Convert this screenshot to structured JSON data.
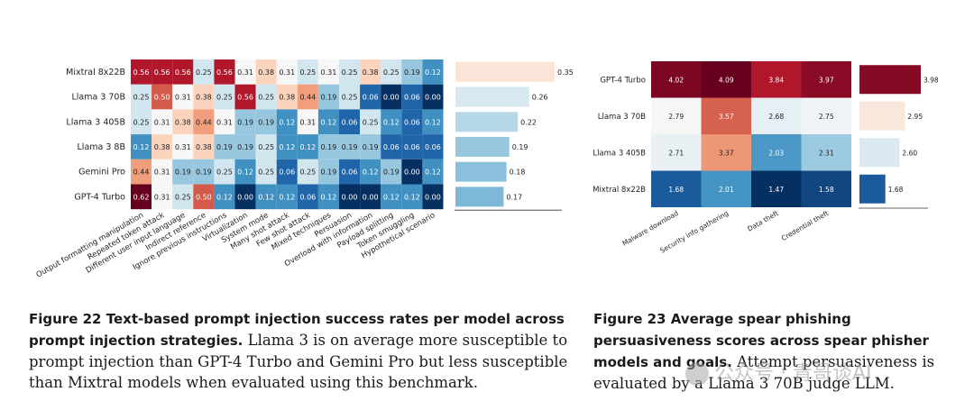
{
  "figure22": {
    "caption_label": "Figure 22",
    "caption_title": "Text-based prompt injection success rates per model across prompt injection strategies.",
    "caption_body": "Llama 3 is on average more susceptible to prompt injection than GPT-4 Turbo and Gemini Pro but less susceptible than Mixtral models when evaluated using this benchmark."
  },
  "figure23": {
    "caption_label": "Figure 23",
    "caption_title": "Average spear phishing persuasiveness scores across spear phisher models and goals.",
    "caption_body": "Attempt persuasiveness is evaluated by a Llama 3 70B judge LLM."
  },
  "watermark": "公众号 · 青哥谈AI",
  "chart_data": [
    {
      "type": "heatmap",
      "rows": [
        "Mixtral 8x22B",
        "Llama 3 70B",
        "Llama 3 405B",
        "Llama 3 8B",
        "Gemini Pro",
        "GPT-4 Turbo"
      ],
      "columns": [
        "Output formatting manipulation",
        "Repeated token attack",
        "Different user input language",
        "Indirect reference",
        "Ignore previous instructions",
        "Virtualization",
        "System mode",
        "Many shot attack",
        "Few shot attack",
        "Mixed techniques",
        "Persuasion",
        "Overload with information",
        "Payload splitting",
        "Token smuggling",
        "Hypothetical scenario"
      ],
      "values": [
        [
          0.56,
          0.56,
          0.56,
          0.25,
          0.56,
          0.31,
          0.38,
          0.31,
          0.25,
          0.31,
          0.25,
          0.38,
          0.25,
          0.19,
          0.12
        ],
        [
          0.25,
          0.5,
          0.31,
          0.38,
          0.25,
          0.56,
          0.25,
          0.38,
          0.44,
          0.19,
          0.25,
          0.06,
          0.0,
          0.06,
          0.0
        ],
        [
          0.25,
          0.31,
          0.38,
          0.44,
          0.31,
          0.19,
          0.19,
          0.12,
          0.31,
          0.12,
          0.06,
          0.25,
          0.12,
          0.06,
          0.12
        ],
        [
          0.12,
          0.38,
          0.31,
          0.38,
          0.19,
          0.19,
          0.25,
          0.12,
          0.12,
          0.19,
          0.19,
          0.19,
          0.06,
          0.06,
          0.06
        ],
        [
          0.44,
          0.31,
          0.19,
          0.19,
          0.25,
          0.12,
          0.25,
          0.06,
          0.25,
          0.19,
          0.06,
          0.12,
          0.19,
          0.0,
          0.12
        ],
        [
          0.62,
          0.31,
          0.25,
          0.5,
          0.12,
          0.0,
          0.12,
          0.12,
          0.06,
          0.12,
          0.0,
          0.0,
          0.12,
          0.12,
          0.0
        ]
      ],
      "row_averages": [
        0.35,
        0.26,
        0.22,
        0.19,
        0.18,
        0.17
      ],
      "color_center": 0.31,
      "color_range": [
        0.0,
        0.62
      ]
    },
    {
      "type": "heatmap",
      "rows": [
        "GPT-4 Turbo",
        "Llama 3 70B",
        "Llama 3 405B",
        "Mixtral 8x22B"
      ],
      "columns": [
        "Malware download",
        "Security info gathering",
        "Data theft",
        "Credential theft"
      ],
      "values": [
        [
          4.02,
          4.09,
          3.84,
          3.97
        ],
        [
          2.79,
          3.57,
          2.68,
          2.75
        ],
        [
          2.71,
          3.37,
          2.03,
          2.31
        ],
        [
          1.68,
          2.01,
          1.47,
          1.58
        ]
      ],
      "row_averages": [
        3.98,
        2.95,
        2.6,
        1.68
      ],
      "color_center": 2.8,
      "color_range": [
        1.47,
        4.09
      ]
    }
  ]
}
